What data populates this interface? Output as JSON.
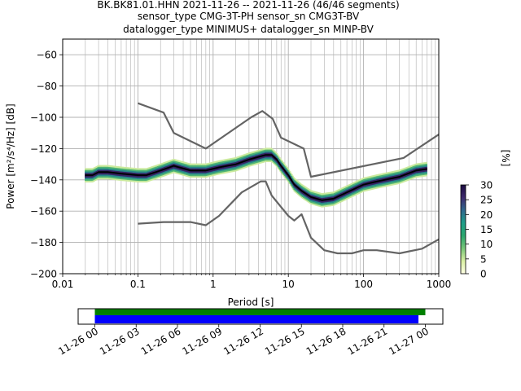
{
  "title": {
    "line1": "BK.BK81.01.HHN   2021-11-26 -- 2021-11-26  (46/46 segments)",
    "line2": "sensor_type CMG-3T-PH sensor_sn CMG3T-BV",
    "line3": "datalogger_type MINIMUS+ datalogger_sn MINP-BV"
  },
  "chart_data": [
    {
      "type": "heatmap",
      "subtype": "probabilistic-power-spectral-density",
      "xlabel": "Period [s]",
      "ylabel": "Power [m²/s⁴/Hz] [dB]",
      "xscale": "log",
      "xlim": [
        0.01,
        1000
      ],
      "ylim": [
        -200,
        -50
      ],
      "xticks": [
        0.01,
        0.1,
        1,
        10,
        100,
        1000
      ],
      "xtick_labels": [
        "0.01",
        "0.1",
        "1",
        "10",
        "100",
        "1000"
      ],
      "yticks": [
        -200,
        -180,
        -160,
        -140,
        -120,
        -100,
        -80,
        -60
      ],
      "grid": true,
      "colorbar": {
        "label": "[%]",
        "range": [
          0,
          30
        ],
        "ticks": [
          0,
          5,
          10,
          15,
          20,
          25,
          30
        ],
        "colors": [
          "#ffffe5",
          "#d9f0a3",
          "#78c679",
          "#2aa66d",
          "#1f9e89",
          "#31688e",
          "#3e2a6e",
          "#1b0c41"
        ]
      },
      "series": [
        {
          "name": "",
          "color": "#646464",
          "x": [
            0.1,
            0.22,
            0.3,
            0.8,
            3.2,
            4.5,
            6.2,
            8,
            16,
            20,
            340,
            1000
          ],
          "y": [
            -91,
            -97,
            -110,
            -120,
            -100,
            -96,
            -101,
            -113,
            -120,
            -138,
            -126,
            -111
          ]
        },
        {
          "name": "",
          "color": "#646464",
          "x": [
            0.1,
            0.22,
            0.5,
            0.8,
            1.2,
            2.4,
            4.3,
            5,
            6,
            10,
            12,
            15,
            20,
            30,
            45,
            70,
            100,
            150,
            300,
            600,
            1000
          ],
          "y": [
            -168,
            -167,
            -167,
            -169,
            -163,
            -148,
            -141,
            -141,
            -150,
            -163,
            -166,
            -162,
            -177,
            -185,
            -187,
            -187,
            -185,
            -185,
            -187,
            -184,
            -178
          ]
        },
        {
          "name": "",
          "color": "#000000",
          "x": [
            0.02,
            0.025,
            0.03,
            0.04,
            0.06,
            0.1,
            0.13,
            0.2,
            0.3,
            0.5,
            0.8,
            1.2,
            2,
            3,
            5,
            6,
            7,
            8,
            10,
            12,
            15,
            20,
            28,
            40,
            60,
            100,
            150,
            300,
            500,
            700
          ],
          "y": [
            -137,
            -137,
            -135,
            -135,
            -136,
            -137,
            -137,
            -134,
            -131,
            -134,
            -134,
            -132,
            -130,
            -127,
            -124,
            -124,
            -127,
            -131,
            -137,
            -143,
            -147,
            -151,
            -153,
            -152,
            -148,
            -143,
            -141,
            -138,
            -134,
            -133
          ]
        }
      ],
      "density_spread_db": 6
    },
    {
      "type": "timeline",
      "x_tick_labels": [
        "11-26 00",
        "11-26 03",
        "11-26 06",
        "11-26 09",
        "11-26 12",
        "11-26 15",
        "11-26 18",
        "11-26 21",
        "11-27 00"
      ],
      "bars": [
        {
          "color": "#008000",
          "start_hour": 0,
          "end_hour": 24.0
        },
        {
          "color": "#0000ff",
          "start_hour": 0,
          "end_hour": 23.5
        }
      ]
    }
  ]
}
